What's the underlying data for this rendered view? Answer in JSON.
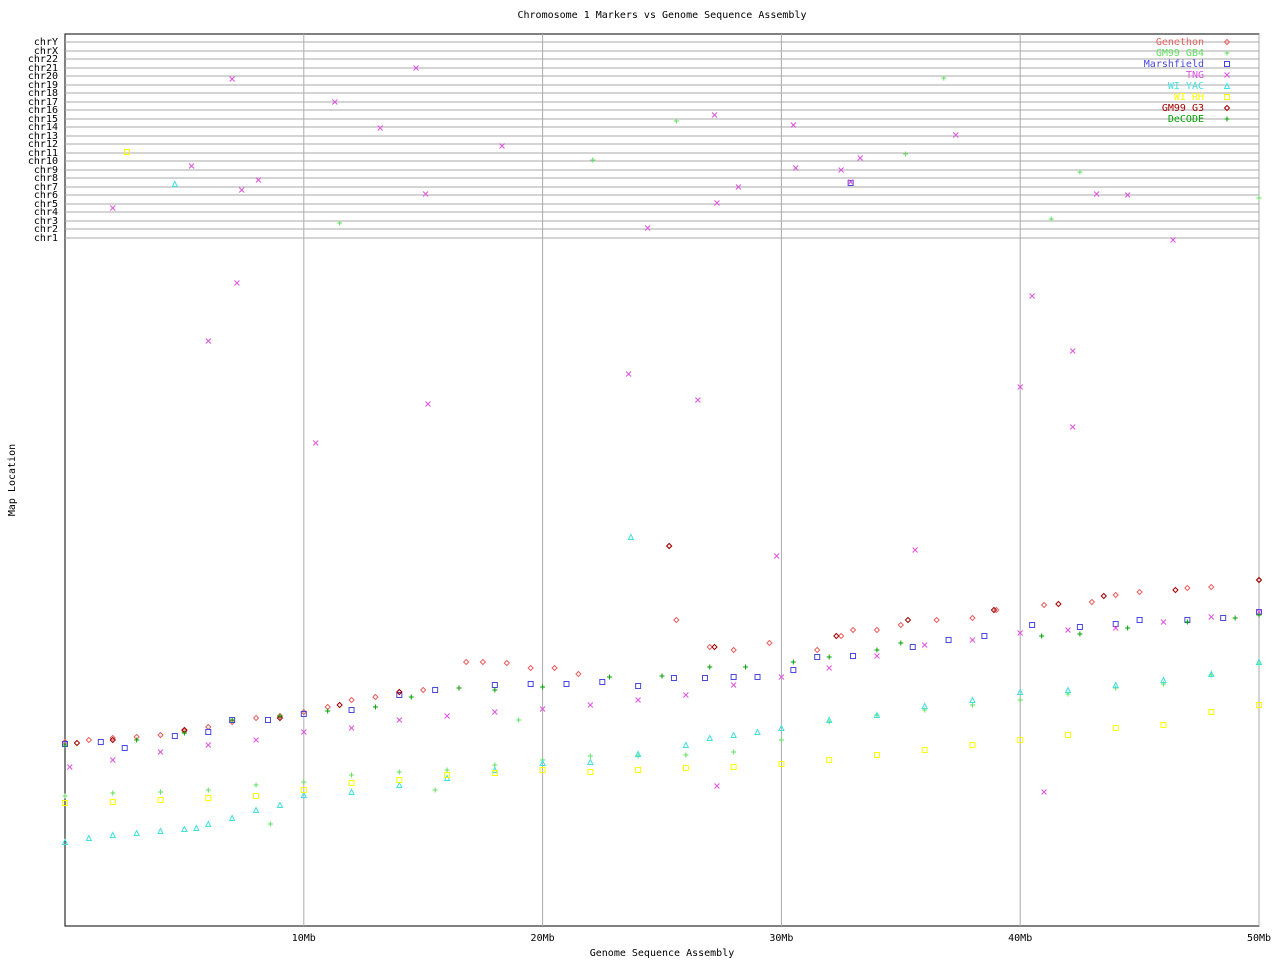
{
  "chart_data": {
    "type": "scatter",
    "title": "Chromosome 1 Markers vs Genome Sequence Assembly",
    "x_label": "Genome Sequence Assembly",
    "y_label": "Map Location",
    "xlim": [
      0,
      50
    ],
    "xticks": [
      {
        "value": 10,
        "label": "10Mb"
      },
      {
        "value": 20,
        "label": "20Mb"
      },
      {
        "value": 30,
        "label": "30Mb"
      },
      {
        "value": 40,
        "label": "40Mb"
      },
      {
        "value": 50,
        "label": "50Mb"
      }
    ],
    "ylim": [
      0,
      892
    ],
    "yticks": [
      {
        "value": 688,
        "label": "chr1"
      },
      {
        "value": 697,
        "label": "chr2"
      },
      {
        "value": 705,
        "label": "chr3"
      },
      {
        "value": 714,
        "label": "chr4"
      },
      {
        "value": 722,
        "label": "chr5"
      },
      {
        "value": 731,
        "label": "chr6"
      },
      {
        "value": 739,
        "label": "chr7"
      },
      {
        "value": 748,
        "label": "chr8"
      },
      {
        "value": 756,
        "label": "chr9"
      },
      {
        "value": 765,
        "label": "chr10"
      },
      {
        "value": 773,
        "label": "chr11"
      },
      {
        "value": 782,
        "label": "chr12"
      },
      {
        "value": 790,
        "label": "chr13"
      },
      {
        "value": 799,
        "label": "chr14"
      },
      {
        "value": 807,
        "label": "chr15"
      },
      {
        "value": 816,
        "label": "chr16"
      },
      {
        "value": 824,
        "label": "chr17"
      },
      {
        "value": 833,
        "label": "chr18"
      },
      {
        "value": 841,
        "label": "chr19"
      },
      {
        "value": 850,
        "label": "chr20"
      },
      {
        "value": 858,
        "label": "chr21"
      },
      {
        "value": 867,
        "label": "chr22"
      },
      {
        "value": 875,
        "label": "chrX"
      },
      {
        "value": 884,
        "label": "chrY"
      }
    ],
    "grid": true,
    "legend": "top-right",
    "series": [
      {
        "name": "Genethon",
        "color": "#e86060",
        "marker": "diamond",
        "x": [
          0,
          1,
          2,
          3,
          4,
          5,
          6,
          7,
          8,
          9,
          10,
          11,
          12,
          13,
          14,
          15,
          16.8,
          17.5,
          18.5,
          19.5,
          20.5,
          21.5,
          25.3,
          25.6,
          27,
          28,
          29.5,
          31.5,
          32.5,
          33,
          34,
          35,
          36.5,
          38,
          39,
          41,
          43,
          44,
          45,
          47,
          48,
          50
        ],
        "y": [
          184,
          186,
          188,
          189,
          191,
          195,
          199,
          204,
          208,
          210,
          214,
          219,
          226,
          229,
          234,
          236,
          264,
          264,
          263,
          258,
          258,
          252,
          380,
          306,
          279,
          276,
          283,
          276,
          290,
          296,
          296,
          301,
          306,
          308,
          316,
          321,
          324,
          331,
          334,
          338,
          339,
          346
        ]
      },
      {
        "name": "GM99 GB4",
        "color": "#60e060",
        "marker": "plus",
        "x": [
          0,
          2,
          4,
          6,
          8,
          10,
          12,
          14,
          16,
          18,
          20,
          22,
          24,
          26,
          28,
          30,
          32,
          34,
          36,
          38,
          40,
          42,
          44,
          46,
          48,
          50,
          8.6,
          15.5,
          19,
          11.5,
          22.1,
          25.6,
          35.2,
          36.8,
          41.3,
          42.5,
          50
        ],
        "y": [
          130,
          133,
          134,
          136,
          141,
          144,
          151,
          154,
          156,
          161,
          166,
          170,
          170,
          171,
          174,
          186,
          204,
          211,
          216,
          221,
          226,
          232,
          238,
          242,
          251,
          262,
          102,
          136,
          206,
          703,
          766,
          805,
          772,
          848,
          707,
          754,
          728
        ]
      },
      {
        "name": "Marshfield",
        "color": "#4848e0",
        "marker": "square",
        "x": [
          0,
          1.5,
          2.5,
          4.6,
          6,
          7,
          8.5,
          10,
          12,
          14,
          15.5,
          18,
          19.5,
          21,
          22.5,
          24,
          25.5,
          26.8,
          28,
          29,
          30.5,
          31.5,
          33,
          35.5,
          37,
          38.5,
          40.5,
          42.5,
          44,
          45,
          47,
          48.5,
          50,
          32.9
        ],
        "y": [
          182,
          184,
          178,
          190,
          194,
          206,
          206,
          212,
          216,
          231,
          236,
          241,
          242,
          242,
          244,
          240,
          248,
          248,
          249,
          249,
          256,
          269,
          270,
          279,
          286,
          290,
          301,
          299,
          302,
          306,
          306,
          308,
          314,
          743
        ]
      },
      {
        "name": "TNG",
        "color": "#e050e0",
        "marker": "cross",
        "x": [
          0.2,
          2,
          4,
          6,
          8,
          10,
          12,
          14,
          16,
          18,
          20,
          22,
          24,
          26,
          28,
          30,
          32,
          34,
          36,
          38,
          40,
          42,
          44,
          46,
          48,
          50,
          10.5,
          15.2,
          6,
          7.2,
          23.6,
          26.5,
          29.8,
          35.6,
          40.5,
          40,
          42.2,
          42.2,
          46.4,
          41,
          27.3,
          7,
          14.7,
          11.3,
          13.2,
          5.3,
          7.4,
          8.1,
          2,
          15.1,
          18.3,
          24.4,
          27.2,
          27.3,
          28.2,
          30.5,
          30.6,
          32.5,
          33.3,
          32.9,
          37.3,
          43.2,
          44.5
        ],
        "y": [
          159,
          166,
          174,
          181,
          186,
          194,
          198,
          206,
          210,
          214,
          217,
          221,
          226,
          231,
          241,
          249,
          258,
          270,
          281,
          286,
          293,
          296,
          298,
          304,
          309,
          314,
          483,
          522,
          585,
          643,
          552,
          526,
          370,
          376,
          630,
          539,
          575,
          499,
          686,
          134,
          140,
          847,
          858,
          824,
          798,
          760,
          736,
          746,
          718,
          732,
          780,
          698,
          811,
          723,
          739,
          801,
          758,
          756,
          768,
          744,
          791,
          732,
          731
        ]
      },
      {
        "name": "WI YAC",
        "color": "#40e0e0",
        "marker": "triangle",
        "x": [
          0,
          1,
          2,
          3,
          4,
          5,
          5.5,
          6,
          7,
          8,
          9,
          10,
          12,
          14,
          16,
          18,
          20,
          22,
          24,
          26,
          27,
          28,
          29,
          30,
          32,
          34,
          36,
          38,
          40,
          42,
          44,
          46,
          48,
          50,
          23.7,
          4.6
        ],
        "y": [
          84,
          88,
          91,
          93,
          95,
          97,
          98,
          102,
          108,
          116,
          121,
          131,
          134,
          141,
          148,
          156,
          163,
          164,
          172,
          181,
          188,
          191,
          194,
          198,
          206,
          211,
          220,
          226,
          234,
          236,
          241,
          246,
          252,
          264,
          389,
          742
        ]
      },
      {
        "name": "WI RH",
        "color": "#ffff00",
        "marker": "square",
        "x": [
          0,
          2,
          4,
          6,
          8,
          10,
          12,
          14,
          16,
          18,
          20,
          22,
          24,
          26,
          28,
          30,
          32,
          34,
          36,
          38,
          40,
          42,
          44,
          46,
          48,
          50,
          2.6
        ],
        "y": [
          123,
          124,
          126,
          128,
          130,
          136,
          143,
          146,
          151,
          153,
          156,
          154,
          156,
          158,
          159,
          162,
          166,
          171,
          176,
          181,
          186,
          191,
          198,
          201,
          214,
          221,
          774
        ]
      },
      {
        "name": "GM99 G3",
        "color": "#a00000",
        "marker": "diamond",
        "x": [
          0.5,
          2,
          5,
          9,
          11.5,
          14,
          25.3,
          27.2,
          32.3,
          35.3,
          38.9,
          41.6,
          43.5,
          46.5,
          50
        ],
        "y": [
          183,
          186,
          196,
          208,
          221,
          234,
          380,
          279,
          290,
          306,
          316,
          322,
          330,
          336,
          346
        ]
      },
      {
        "name": "DeCODE",
        "color": "#00a000",
        "marker": "plus",
        "x": [
          0,
          3,
          5,
          7,
          9,
          11,
          13,
          14.5,
          16.5,
          18,
          20,
          22.8,
          25,
          27,
          28.5,
          30.5,
          32,
          34,
          35,
          40.9,
          42.5,
          44.5,
          47,
          49,
          50
        ],
        "y": [
          181,
          186,
          193,
          206,
          210,
          215,
          219,
          229,
          238,
          236,
          239,
          249,
          250,
          259,
          259,
          264,
          269,
          276,
          283,
          290,
          292,
          298,
          304,
          308,
          311
        ]
      }
    ]
  }
}
